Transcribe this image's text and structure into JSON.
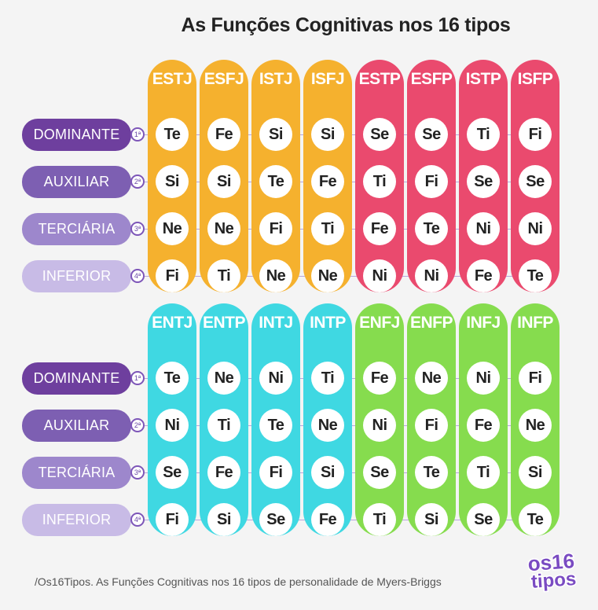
{
  "title": "As Funções Cognitivas nos 16 tipos",
  "row_labels": [
    "DOMINANTE",
    "AUXILIAR",
    "TERCIÁRIA",
    "INFERIOR"
  ],
  "row_label_colors": [
    "#6e3f9e",
    "#7d5fb2",
    "#9d87cc",
    "#c8bbe6"
  ],
  "ordinals": [
    "1ª",
    "2ª",
    "3ª",
    "4ª"
  ],
  "groups": [
    {
      "types": [
        {
          "name": "ESTJ",
          "color": "#f5b12e",
          "functions": [
            "Te",
            "Si",
            "Ne",
            "Fi"
          ]
        },
        {
          "name": "ESFJ",
          "color": "#f5b12e",
          "functions": [
            "Fe",
            "Si",
            "Ne",
            "Ti"
          ]
        },
        {
          "name": "ISTJ",
          "color": "#f5b12e",
          "functions": [
            "Si",
            "Te",
            "Fi",
            "Ne"
          ]
        },
        {
          "name": "ISFJ",
          "color": "#f5b12e",
          "functions": [
            "Si",
            "Fe",
            "Ti",
            "Ne"
          ]
        },
        {
          "name": "ESTP",
          "color": "#ea4a6e",
          "functions": [
            "Se",
            "Ti",
            "Fe",
            "Ni"
          ]
        },
        {
          "name": "ESFP",
          "color": "#ea4a6e",
          "functions": [
            "Se",
            "Fi",
            "Te",
            "Ni"
          ]
        },
        {
          "name": "ISTP",
          "color": "#ea4a6e",
          "functions": [
            "Ti",
            "Se",
            "Ni",
            "Fe"
          ]
        },
        {
          "name": "ISFP",
          "color": "#ea4a6e",
          "functions": [
            "Fi",
            "Se",
            "Ni",
            "Te"
          ]
        }
      ]
    },
    {
      "types": [
        {
          "name": "ENTJ",
          "color": "#3fd8e2",
          "functions": [
            "Te",
            "Ni",
            "Se",
            "Fi"
          ]
        },
        {
          "name": "ENTP",
          "color": "#3fd8e2",
          "functions": [
            "Ne",
            "Ti",
            "Fe",
            "Si"
          ]
        },
        {
          "name": "INTJ",
          "color": "#3fd8e2",
          "functions": [
            "Ni",
            "Te",
            "Fi",
            "Se"
          ]
        },
        {
          "name": "INTP",
          "color": "#3fd8e2",
          "functions": [
            "Ti",
            "Ne",
            "Si",
            "Fe"
          ]
        },
        {
          "name": "ENFJ",
          "color": "#86dc4e",
          "functions": [
            "Fe",
            "Ni",
            "Se",
            "Ti"
          ]
        },
        {
          "name": "ENFP",
          "color": "#86dc4e",
          "functions": [
            "Ne",
            "Fi",
            "Te",
            "Si"
          ]
        },
        {
          "name": "INFJ",
          "color": "#86dc4e",
          "functions": [
            "Ni",
            "Fe",
            "Ti",
            "Se"
          ]
        },
        {
          "name": "INFP",
          "color": "#86dc4e",
          "functions": [
            "Fi",
            "Ne",
            "Si",
            "Te"
          ]
        }
      ]
    }
  ],
  "source": "/Os16Tipos. As Funções Cognitivas nos 16 tipos de personalidade de Myers-Briggs",
  "logo": {
    "line1": "os16",
    "line2": "tipos"
  }
}
